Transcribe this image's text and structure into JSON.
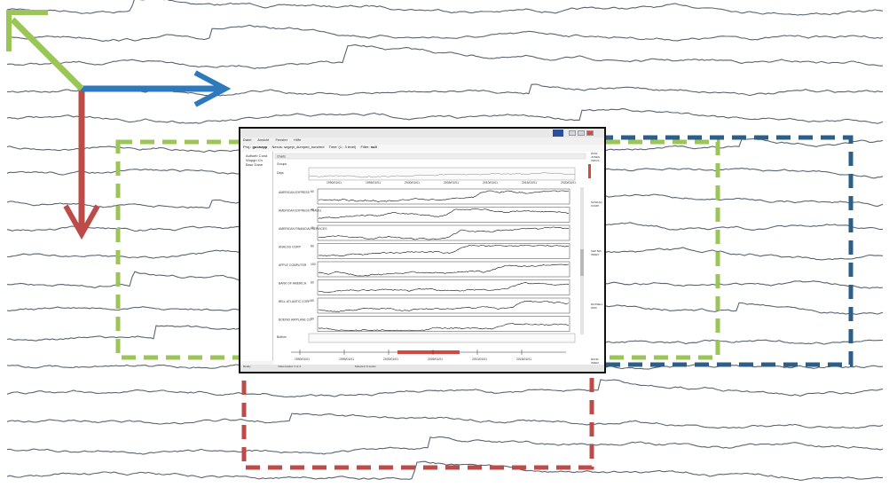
{
  "window": {
    "menu": [
      "Datei",
      "Ansicht",
      "Fenster",
      "Hilfe"
    ],
    "toolbar": {
      "field1_label": "Proj.:",
      "field1_value": "guonapp",
      "field2_label": "Nexus:",
      "field2_value": "segepi_dumped_hundred",
      "field3_label": "Time:",
      "field3_value": "(1 ; 3 level)",
      "field4_label": "Filter:",
      "field4_value": "null"
    },
    "sidebar_items": [
      "Aufloeb Cona",
      "Wupgn Cn",
      "Baur Dane"
    ],
    "panel_header": "Charts",
    "groups_label": "Groups",
    "overview_label": "Days",
    "bottom_label": "Bottom",
    "dates": [
      "1990/01/01",
      "1995/01/01",
      "2000/01/01",
      "2005/01/01",
      "2010/01/01",
      "2015/01/01",
      "2020/01/01"
    ],
    "rows": [
      {
        "label": "AMERICAN EXPRESS",
        "y_max": "60"
      },
      {
        "label": "AMERICAN EXPRESS TRAVEL",
        "y_max": "40"
      },
      {
        "label": "AMERICAN FINANCIAL SERVICES",
        "y_max": "40"
      },
      {
        "label": "ANALOG CORP",
        "y_max": "80"
      },
      {
        "label": "APPLE COMPUTER",
        "y_max": "100"
      },
      {
        "label": "BANK OF AMERICA",
        "y_max": "60"
      },
      {
        "label": "BELL ATLANTIC CORP",
        "y_max": "60"
      },
      {
        "label": "BOEING AIRPLANE CO",
        "y_max": "60"
      }
    ],
    "right_labels": [
      "DOW JONES INDUS.",
      "NASDAQ COMP.",
      "S&P 500 INDEX",
      "RUSSELL 2000",
      "BOND INDEX"
    ],
    "status": [
      "Ready",
      "Data loaded: 3 of 3",
      "Selected: 8 series"
    ]
  },
  "colors": {
    "green": "#9bc657",
    "blue": "#2e79bb",
    "red": "#bd4c49",
    "dark_blue": "#2c5f87",
    "line": "#5a6573"
  }
}
